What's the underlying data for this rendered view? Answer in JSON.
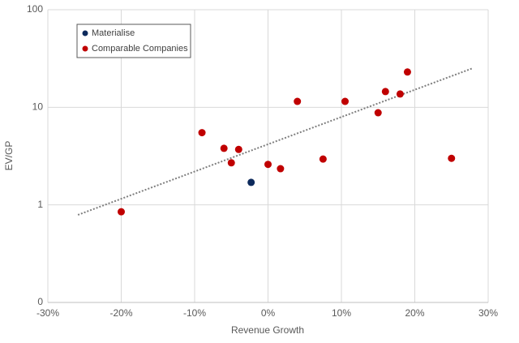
{
  "chart_data": {
    "type": "scatter",
    "x_label": "Revenue Growth",
    "y_label": "EV/GP",
    "xlim": [
      -30,
      30
    ],
    "xticks": [
      {
        "value": -30,
        "label": "-30%"
      },
      {
        "value": -20,
        "label": "-20%"
      },
      {
        "value": -10,
        "label": "-10%"
      },
      {
        "value": 0,
        "label": "0%"
      },
      {
        "value": 10,
        "label": "10%"
      },
      {
        "value": 20,
        "label": "20%"
      },
      {
        "value": 30,
        "label": "30%"
      }
    ],
    "ylim": [
      0.1,
      100
    ],
    "y_log": true,
    "yticks": [
      {
        "value": 0.1,
        "label": "0"
      },
      1,
      10,
      100
    ],
    "grid": true,
    "legend": "top-left",
    "series": [
      {
        "name": "Materialise",
        "color": "#0d2a5c",
        "x": [
          -2.3
        ],
        "values": [
          1.7
        ]
      },
      {
        "name": "Comparable Companies",
        "color": "#c00000",
        "x": [
          -20,
          -9,
          -6,
          -5,
          -4,
          0,
          1.7,
          4,
          7.5,
          10.5,
          15,
          16,
          18,
          19,
          25
        ],
        "values": [
          0.85,
          5.5,
          3.8,
          2.7,
          3.7,
          2.6,
          2.35,
          11.5,
          2.95,
          11.5,
          8.8,
          14.5,
          13.7,
          23,
          3.0
        ]
      }
    ],
    "trendline": {
      "color": "#7f7f7f",
      "x": [
        -25.9,
        27.8
      ],
      "values": [
        0.79,
        25
      ]
    }
  }
}
